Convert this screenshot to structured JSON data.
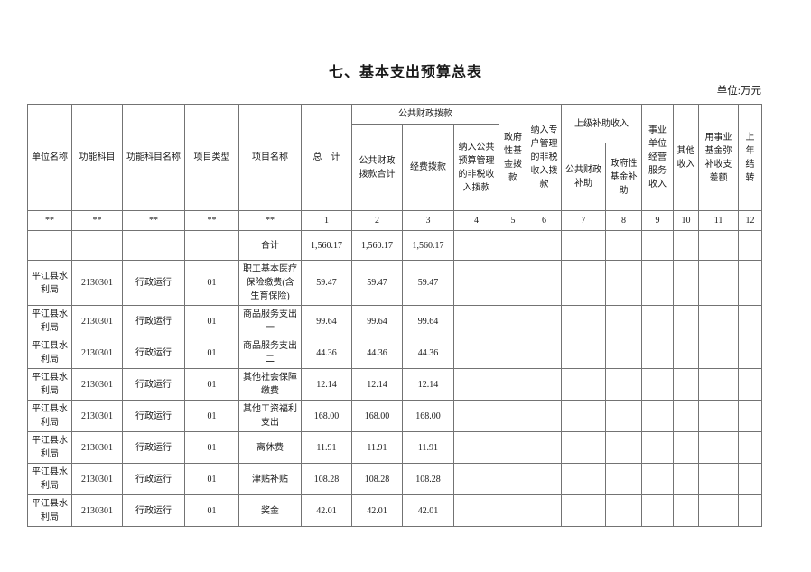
{
  "page": {
    "title": "七、基本支出预算总表",
    "unit_note": "单位:万元"
  },
  "table": {
    "header": {
      "col_unit": "单位名称",
      "col_func_code": "功能科目",
      "col_func_name": "功能科目名称",
      "col_proj_type": "项目类型",
      "col_proj_name": "项目名称",
      "col_total": "总　计",
      "group_public_finance": "公共财政拨款",
      "col_pf_total": "公共财政拨款合计",
      "col_funds": "经费拨款",
      "col_nontax_public": "纳入公共预算管理的非税收入拨款",
      "col_gov_fund": "政府性基金拨款",
      "col_nontax_special": "纳入专户管理的非税收入拨款",
      "group_superior_subsidy": "上级补助收入",
      "col_pf_subsidy": "公共财政补助",
      "col_gf_subsidy": "政府性基金补助",
      "col_business_income": "事业单位经营服务收入",
      "col_other_income": "其他收入",
      "col_fund_balance": "用事业基金弥补收支差额",
      "col_carryover": "上年结转"
    },
    "marker_row": [
      "**",
      "**",
      "**",
      "**",
      "**",
      "1",
      "2",
      "3",
      "4",
      "5",
      "6",
      "7",
      "8",
      "9",
      "10",
      "11",
      "12"
    ],
    "total_row": {
      "label": "合计",
      "values": [
        "1,560.17",
        "1,560.17",
        "1,560.17"
      ]
    },
    "rows": [
      {
        "unit": "平江县水利局",
        "func_code": "2130301",
        "func_name": "行政运行",
        "proj_type": "01",
        "proj_name": "职工基本医疗保险缴费(含生育保险)",
        "total": "59.47",
        "pf_total": "59.47",
        "funds": "59.47"
      },
      {
        "unit": "平江县水利局",
        "func_code": "2130301",
        "func_name": "行政运行",
        "proj_type": "01",
        "proj_name": "商品服务支出一",
        "total": "99.64",
        "pf_total": "99.64",
        "funds": "99.64"
      },
      {
        "unit": "平江县水利局",
        "func_code": "2130301",
        "func_name": "行政运行",
        "proj_type": "01",
        "proj_name": "商品服务支出二",
        "total": "44.36",
        "pf_total": "44.36",
        "funds": "44.36"
      },
      {
        "unit": "平江县水利局",
        "func_code": "2130301",
        "func_name": "行政运行",
        "proj_type": "01",
        "proj_name": "其他社会保障缴费",
        "total": "12.14",
        "pf_total": "12.14",
        "funds": "12.14"
      },
      {
        "unit": "平江县水利局",
        "func_code": "2130301",
        "func_name": "行政运行",
        "proj_type": "01",
        "proj_name": "其他工资福利支出",
        "total": "168.00",
        "pf_total": "168.00",
        "funds": "168.00"
      },
      {
        "unit": "平江县水利局",
        "func_code": "2130301",
        "func_name": "行政运行",
        "proj_type": "01",
        "proj_name": "离休费",
        "total": "11.91",
        "pf_total": "11.91",
        "funds": "11.91"
      },
      {
        "unit": "平江县水利局",
        "func_code": "2130301",
        "func_name": "行政运行",
        "proj_type": "01",
        "proj_name": "津贴补贴",
        "total": "108.28",
        "pf_total": "108.28",
        "funds": "108.28"
      },
      {
        "unit": "平江县水利局",
        "func_code": "2130301",
        "func_name": "行政运行",
        "proj_type": "01",
        "proj_name": "奖金",
        "total": "42.01",
        "pf_total": "42.01",
        "funds": "42.01"
      }
    ]
  }
}
